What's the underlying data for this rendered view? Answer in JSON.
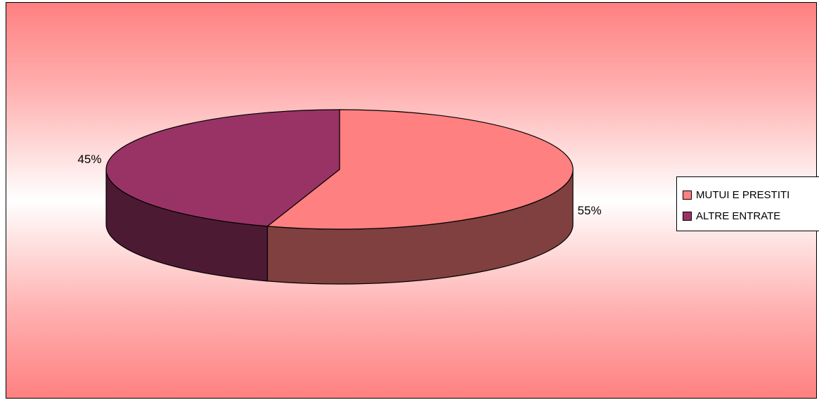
{
  "chart_data": {
    "type": "pie",
    "variant": "3d",
    "categories": [
      "MUTUI E PRESTITI",
      "ALTRE ENTRATE"
    ],
    "values": [
      55,
      45
    ],
    "data_labels": [
      "55%",
      "45%"
    ],
    "colors": [
      "#ff8080",
      "#993366"
    ],
    "side_colors": [
      "#804040",
      "#4d1a33"
    ],
    "legend_position": "right"
  }
}
